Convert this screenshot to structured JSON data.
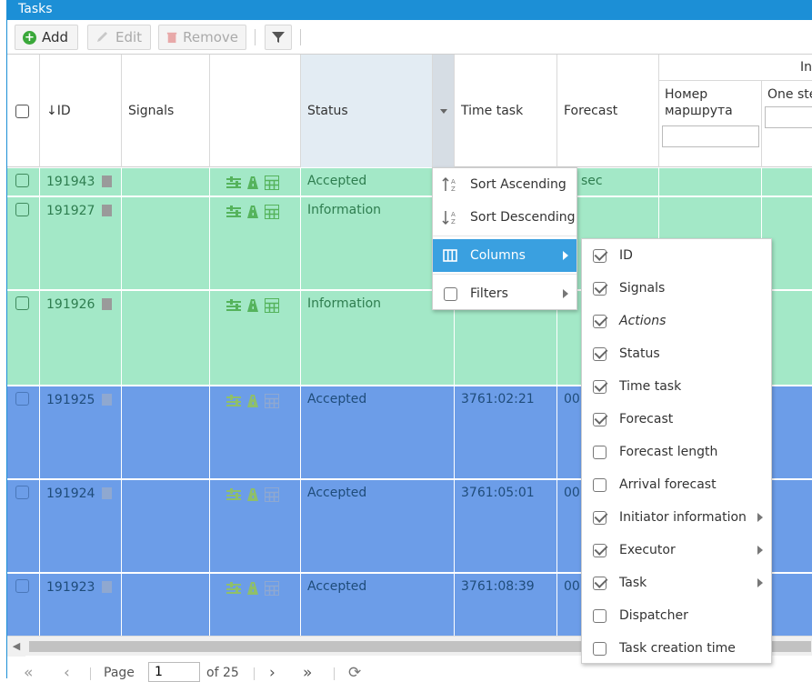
{
  "window": {
    "title": "Tasks"
  },
  "toolbar": {
    "add_label": "Add",
    "edit_label": "Edit",
    "remove_label": "Remove"
  },
  "columns": {
    "id": "ID",
    "signals": "Signals",
    "status": "Status",
    "time_task": "Time task",
    "forecast": "Forecast",
    "group_label": "In",
    "route_number": "Номер маршрута",
    "one_step": "One ste"
  },
  "rows": [
    {
      "id": "191943",
      "status": "Accepted",
      "time_task": "",
      "forecast": "sec",
      "color": "green"
    },
    {
      "id": "191927",
      "status": "Information",
      "time_task": "",
      "forecast": "",
      "color": "green"
    },
    {
      "id": "191926",
      "status": "Information",
      "time_task": "",
      "forecast": "",
      "color": "green"
    },
    {
      "id": "191925",
      "status": "Accepted",
      "time_task": "3761:02:21",
      "forecast": "00",
      "color": "blue"
    },
    {
      "id": "191924",
      "status": "Accepted",
      "time_task": "3761:05:01",
      "forecast": "00",
      "color": "blue"
    },
    {
      "id": "191923",
      "status": "Accepted",
      "time_task": "3761:08:39",
      "forecast": "00",
      "color": "blue"
    }
  ],
  "column_menu": {
    "sort_asc": "Sort Ascending",
    "sort_desc": "Sort Descending",
    "columns": "Columns",
    "filters": "Filters"
  },
  "columns_submenu": [
    {
      "label": "ID",
      "checked": true,
      "italic": false,
      "submenu": false
    },
    {
      "label": "Signals",
      "checked": true,
      "italic": false,
      "submenu": false
    },
    {
      "label": "Actions",
      "checked": true,
      "italic": true,
      "submenu": false
    },
    {
      "label": "Status",
      "checked": true,
      "italic": false,
      "submenu": false
    },
    {
      "label": "Time task",
      "checked": true,
      "italic": false,
      "submenu": false
    },
    {
      "label": "Forecast",
      "checked": true,
      "italic": false,
      "submenu": false
    },
    {
      "label": "Forecast length",
      "checked": false,
      "italic": false,
      "submenu": false
    },
    {
      "label": "Arrival forecast",
      "checked": false,
      "italic": false,
      "submenu": false
    },
    {
      "label": "Initiator information",
      "checked": true,
      "italic": false,
      "submenu": true
    },
    {
      "label": "Executor",
      "checked": true,
      "italic": false,
      "submenu": true
    },
    {
      "label": "Task",
      "checked": true,
      "italic": false,
      "submenu": true
    },
    {
      "label": "Dispatcher",
      "checked": false,
      "italic": false,
      "submenu": false
    },
    {
      "label": "Task creation time",
      "checked": false,
      "italic": false,
      "submenu": false
    }
  ],
  "pager": {
    "page_label": "Page",
    "page_value": "1",
    "of_label": "of 25"
  },
  "colors": {
    "accent": "#1c8fd6",
    "row_green": "#a3e8c7",
    "row_blue": "#6c9de8",
    "menu_active": "#3aa0e0"
  }
}
